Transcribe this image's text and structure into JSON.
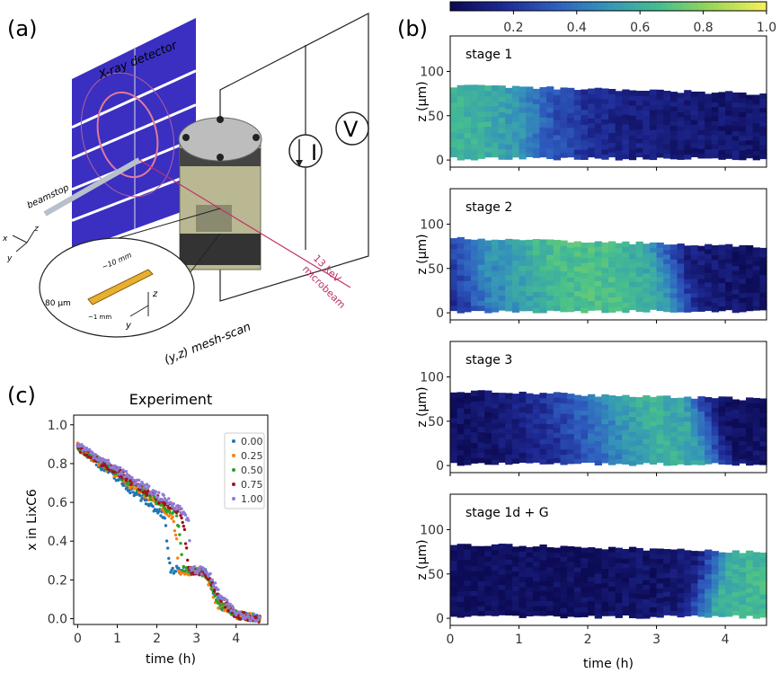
{
  "panel_a": {
    "label": "(a)",
    "detector": "X-ray detector",
    "beamstop": "beamstop",
    "current": "I",
    "voltage": "V",
    "beam": [
      "13 keV",
      "microbeam"
    ],
    "scan": "(y,z) mesh-scan",
    "len_label": "~10 mm",
    "thick_label": "80 µm",
    "width_label": "~1 mm",
    "axes": {
      "x": "x",
      "y": "y",
      "z": "z"
    },
    "colors": {
      "detector": "#3a2fc0",
      "ring": "#e07a9a",
      "cell": "#b9b892",
      "metal": "#8a8a8a",
      "beam": "#c0306a",
      "electrode": "#e8b030"
    }
  },
  "panel_b": {
    "label": "(b)"
  },
  "panel_c": {
    "label": "(c)"
  },
  "chart_data": [
    {
      "type": "heatmap",
      "panel": "b",
      "colorbar": {
        "ticks": [
          "0.2",
          "0.4",
          "0.6",
          "0.8",
          "1.0"
        ],
        "range": [
          0,
          1
        ],
        "colormap": [
          "#0d0b55",
          "#1f2a95",
          "#2f5fc0",
          "#3596b8",
          "#46bf8e",
          "#9ad756",
          "#f4ef5a"
        ]
      },
      "xlabel": "time (h)",
      "ylabel": "z (µm)",
      "xlim": [
        0,
        4.6
      ],
      "ylim": [
        -8,
        140
      ],
      "xticks": [
        "0",
        "1",
        "2",
        "3",
        "4"
      ],
      "yticks": [
        "0",
        "50",
        "100"
      ],
      "electrode_z_range": [
        0,
        80
      ],
      "time_nodes": [
        0,
        0.5,
        1,
        1.5,
        2,
        2.5,
        3,
        3.5,
        4,
        4.6
      ],
      "stages": [
        {
          "title": "stage 1",
          "profile": [
            0.62,
            0.6,
            0.5,
            0.3,
            0.18,
            0.12,
            0.1,
            0.08,
            0.07,
            0.06
          ]
        },
        {
          "title": "stage 2",
          "profile": [
            0.2,
            0.45,
            0.55,
            0.65,
            0.68,
            0.65,
            0.55,
            0.12,
            0.06,
            0.05
          ]
        },
        {
          "title": "stage 3",
          "profile": [
            0.03,
            0.05,
            0.1,
            0.2,
            0.35,
            0.5,
            0.62,
            0.55,
            0.05,
            0.04
          ]
        },
        {
          "title": "stage 1d + G",
          "profile": [
            0.02,
            0.02,
            0.02,
            0.02,
            0.03,
            0.04,
            0.05,
            0.1,
            0.6,
            0.65
          ]
        }
      ]
    },
    {
      "type": "scatter",
      "panel": "c",
      "title": "Experiment",
      "xlabel": "time (h)",
      "ylabel": "x in LixC6",
      "xlim": [
        -0.1,
        4.8
      ],
      "ylim": [
        -0.03,
        1.05
      ],
      "xticks": [
        "0",
        "1",
        "2",
        "3",
        "4"
      ],
      "yticks": [
        "0.0",
        "0.2",
        "0.4",
        "0.6",
        "0.8",
        "1.0"
      ],
      "legend_position": "top-right",
      "series": [
        {
          "name": "0.00",
          "color": "#1f77b4",
          "points": [
            [
              0,
              0.89
            ],
            [
              1,
              0.72
            ],
            [
              2,
              0.56
            ],
            [
              2.2,
              0.52
            ],
            [
              2.3,
              0.3
            ],
            [
              2.35,
              0.25
            ],
            [
              3.2,
              0.25
            ],
            [
              3.6,
              0.07
            ],
            [
              4,
              0.02
            ],
            [
              4.6,
              0.0
            ]
          ]
        },
        {
          "name": "0.25",
          "color": "#ff7f0e",
          "points": [
            [
              0,
              0.89
            ],
            [
              1,
              0.74
            ],
            [
              2,
              0.6
            ],
            [
              2.4,
              0.53
            ],
            [
              2.5,
              0.4
            ],
            [
              2.55,
              0.25
            ],
            [
              3.2,
              0.24
            ],
            [
              3.5,
              0.08
            ],
            [
              4,
              0.02
            ],
            [
              4.6,
              0.0
            ]
          ]
        },
        {
          "name": "0.50",
          "color": "#2ca02c",
          "points": [
            [
              0,
              0.89
            ],
            [
              1,
              0.75
            ],
            [
              2,
              0.61
            ],
            [
              2.5,
              0.53
            ],
            [
              2.6,
              0.4
            ],
            [
              2.65,
              0.25
            ],
            [
              3.2,
              0.24
            ],
            [
              3.55,
              0.08
            ],
            [
              4,
              0.02
            ],
            [
              4.6,
              0.0
            ]
          ]
        },
        {
          "name": "0.75",
          "color": "#a0141e",
          "points": [
            [
              0,
              0.88
            ],
            [
              1,
              0.76
            ],
            [
              2,
              0.62
            ],
            [
              2.6,
              0.55
            ],
            [
              2.7,
              0.45
            ],
            [
              2.8,
              0.25
            ],
            [
              3.2,
              0.24
            ],
            [
              3.6,
              0.1
            ],
            [
              4,
              0.02
            ],
            [
              4.6,
              0.0
            ]
          ]
        },
        {
          "name": "1.00",
          "color": "#8f7bd6",
          "points": [
            [
              0,
              0.9
            ],
            [
              1,
              0.77
            ],
            [
              2,
              0.64
            ],
            [
              2.5,
              0.58
            ],
            [
              2.8,
              0.52
            ],
            [
              2.85,
              0.25
            ],
            [
              3.25,
              0.25
            ],
            [
              3.65,
              0.1
            ],
            [
              4,
              0.03
            ],
            [
              4.6,
              0.0
            ]
          ]
        }
      ]
    }
  ]
}
